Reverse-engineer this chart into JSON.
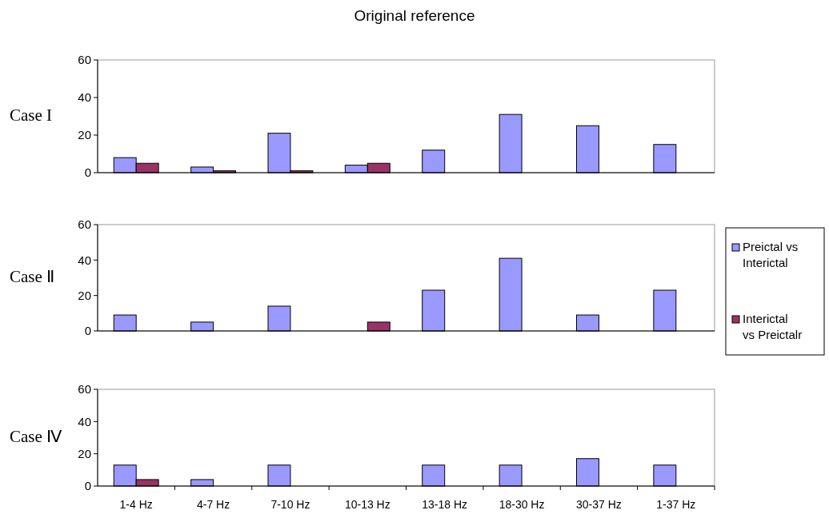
{
  "chart_data": [
    {
      "type": "bar",
      "title": "Original reference",
      "ylabel": "Case I",
      "categories": [
        null,
        null,
        null,
        null,
        null,
        null,
        null,
        null
      ],
      "ylim": [
        0,
        60
      ],
      "yticks": [
        0,
        20,
        40,
        60
      ],
      "tick_labels": "y",
      "grid": false,
      "legend": false,
      "series": [
        {
          "color": "#9999ff",
          "values": [
            8,
            3,
            21,
            4,
            12,
            31,
            25,
            15
          ]
        },
        {
          "color": "#993366",
          "values": [
            5,
            1,
            1,
            5,
            null,
            null,
            null,
            null
          ]
        }
      ]
    },
    {
      "type": "bar",
      "ylabel": "Case Ⅱ",
      "categories": [
        null,
        null,
        null,
        null,
        null,
        null,
        null,
        null
      ],
      "ylim": [
        0,
        60
      ],
      "yticks": [
        0,
        20,
        40,
        60
      ],
      "tick_labels": "y",
      "grid": false,
      "legend": "right",
      "series": [
        {
          "name": "Preictal vs Interictal",
          "color": "#9999ff",
          "values": [
            9,
            5,
            14,
            null,
            23,
            41,
            9,
            23
          ]
        },
        {
          "name": "Interictal vs Preictalr",
          "color": "#993366",
          "values": [
            null,
            null,
            null,
            5,
            null,
            null,
            null,
            null
          ]
        }
      ]
    },
    {
      "type": "bar",
      "ylabel": "Case Ⅳ",
      "categories": [
        "1-4 Hz",
        "4-7 Hz",
        "7-10 Hz",
        "10-13 Hz",
        "13-18 Hz",
        "18-30 Hz",
        "30-37 Hz",
        "1-37 Hz"
      ],
      "ylim": [
        0,
        60
      ],
      "yticks": [
        0,
        20,
        40,
        60
      ],
      "grid": false,
      "legend": false,
      "series": [
        {
          "color": "#9999ff",
          "values": [
            13,
            4,
            13,
            null,
            13,
            13,
            17,
            13
          ]
        },
        {
          "color": "#993366",
          "values": [
            4,
            null,
            null,
            null,
            null,
            null,
            null,
            null
          ]
        }
      ]
    }
  ]
}
